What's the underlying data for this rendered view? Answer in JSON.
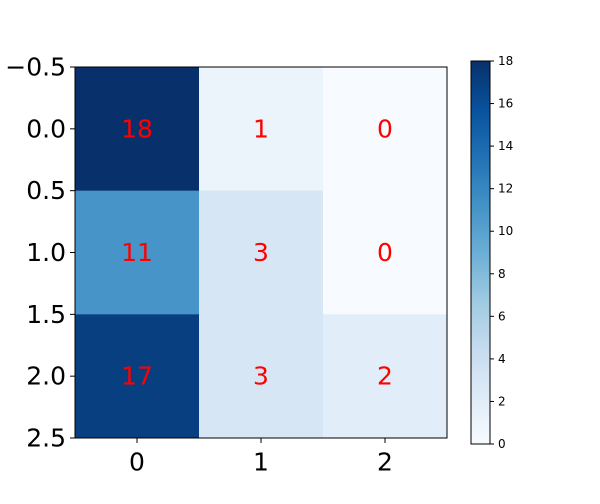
{
  "chart_data": {
    "type": "heatmap",
    "title": "",
    "xlabel": "",
    "ylabel": "",
    "rows": [
      0,
      1,
      2
    ],
    "columns": [
      0,
      1,
      2
    ],
    "values": [
      [
        18,
        1,
        0
      ],
      [
        11,
        3,
        0
      ],
      [
        17,
        3,
        2
      ]
    ],
    "x_ticks": [
      "0",
      "1",
      "2"
    ],
    "y_ticks": [
      "−0.5",
      "0.0",
      "0.5",
      "1.0",
      "1.5",
      "2.0",
      "2.5"
    ],
    "colormap": "Blues",
    "colormap_stops": [
      "#f7fbff",
      "#deebf7",
      "#c6dbef",
      "#9ecae1",
      "#6baed6",
      "#4292c6",
      "#2171b5",
      "#08519c",
      "#08306b"
    ],
    "annotation_color": "#ff0000",
    "colorbar": {
      "range": [
        0,
        18
      ],
      "ticks": [
        "0",
        "2",
        "4",
        "6",
        "8",
        "10",
        "12",
        "14",
        "16",
        "18"
      ]
    },
    "grid": false,
    "legend": "colorbar-right"
  }
}
